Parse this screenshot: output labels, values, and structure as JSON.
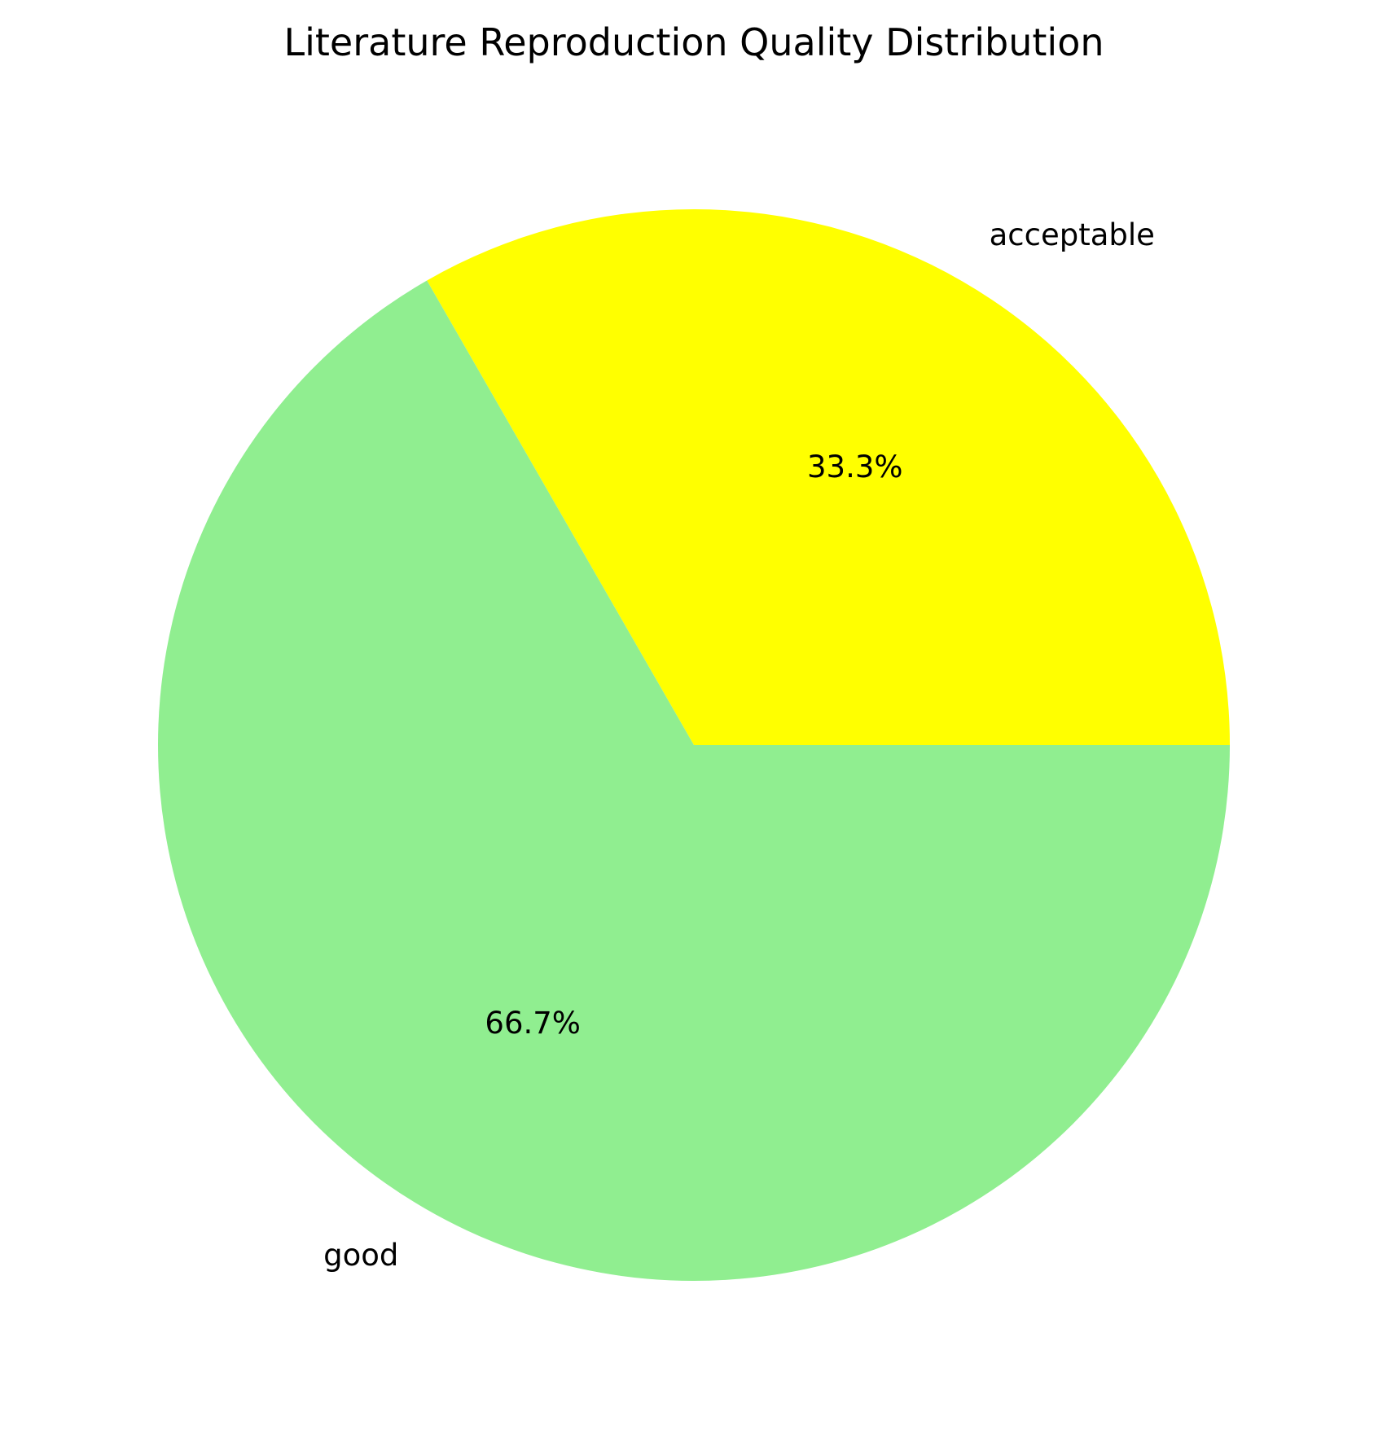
{
  "chart_data": {
    "type": "pie",
    "title": "Literature Reproduction Quality Distribution",
    "start_angle_deg": 0,
    "direction": "counterclockwise",
    "slices": [
      {
        "label": "acceptable",
        "value": 33.3,
        "pct_label": "33.3%",
        "color": "#ffff00"
      },
      {
        "label": "good",
        "value": 66.7,
        "pct_label": "66.7%",
        "color": "#90ee90"
      }
    ]
  }
}
